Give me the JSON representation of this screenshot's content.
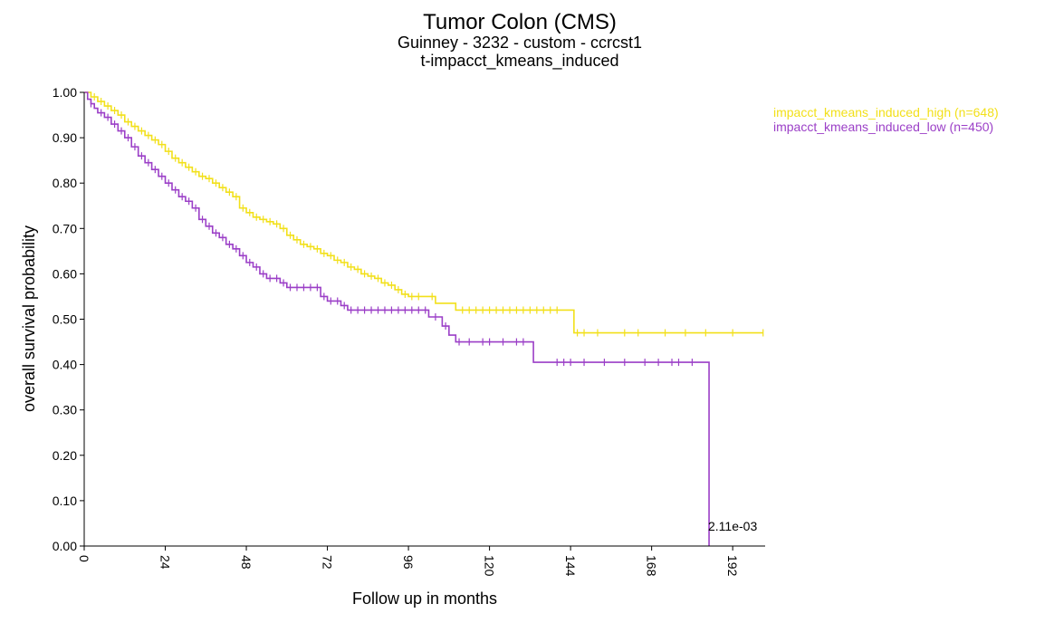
{
  "chart_data": {
    "type": "line",
    "title": "Tumor Colon (CMS)",
    "subtitle_1": "Guinney - 3232 - custom - ccrcst1",
    "subtitle_2": "t-impacct_kmeans_induced",
    "xlabel": "Follow up in months",
    "ylabel": "overall survival probability",
    "xlim": [
      0,
      197
    ],
    "ylim": [
      0,
      1
    ],
    "x_ticks": [
      "0",
      "24",
      "48",
      "72",
      "96",
      "120",
      "144",
      "168",
      "192"
    ],
    "y_ticks": [
      "0.00",
      "0.10",
      "0.20",
      "0.30",
      "0.40",
      "0.50",
      "0.60",
      "0.70",
      "0.80",
      "0.90",
      "1.00"
    ],
    "legend_position": "top-right",
    "p_value": "2.11e-03",
    "series": [
      {
        "name": "impacct_kmeans_induced_high (n=648)",
        "color": "#f2e01a",
        "points": [
          [
            0,
            1.0
          ],
          [
            2,
            0.99
          ],
          [
            4,
            0.98
          ],
          [
            6,
            0.97
          ],
          [
            8,
            0.96
          ],
          [
            10,
            0.95
          ],
          [
            12,
            0.935
          ],
          [
            14,
            0.925
          ],
          [
            16,
            0.915
          ],
          [
            18,
            0.905
          ],
          [
            20,
            0.895
          ],
          [
            22,
            0.885
          ],
          [
            24,
            0.87
          ],
          [
            26,
            0.855
          ],
          [
            28,
            0.845
          ],
          [
            30,
            0.835
          ],
          [
            32,
            0.825
          ],
          [
            34,
            0.815
          ],
          [
            36,
            0.81
          ],
          [
            38,
            0.8
          ],
          [
            40,
            0.79
          ],
          [
            42,
            0.78
          ],
          [
            44,
            0.77
          ],
          [
            46,
            0.745
          ],
          [
            48,
            0.735
          ],
          [
            50,
            0.725
          ],
          [
            52,
            0.72
          ],
          [
            54,
            0.715
          ],
          [
            56,
            0.71
          ],
          [
            58,
            0.7
          ],
          [
            60,
            0.685
          ],
          [
            62,
            0.675
          ],
          [
            64,
            0.665
          ],
          [
            66,
            0.66
          ],
          [
            68,
            0.655
          ],
          [
            70,
            0.645
          ],
          [
            72,
            0.64
          ],
          [
            74,
            0.63
          ],
          [
            76,
            0.625
          ],
          [
            78,
            0.615
          ],
          [
            80,
            0.61
          ],
          [
            82,
            0.6
          ],
          [
            84,
            0.595
          ],
          [
            86,
            0.59
          ],
          [
            88,
            0.58
          ],
          [
            90,
            0.575
          ],
          [
            92,
            0.565
          ],
          [
            94,
            0.555
          ],
          [
            96,
            0.55
          ],
          [
            100,
            0.55
          ],
          [
            104,
            0.535
          ],
          [
            110,
            0.52
          ],
          [
            144,
            0.52
          ],
          [
            145,
            0.47
          ],
          [
            201,
            0.47
          ]
        ],
        "censor_x": [
          3,
          5,
          7,
          9,
          11,
          13,
          15,
          17,
          19,
          21,
          23,
          25,
          27,
          29,
          31,
          33,
          35,
          37,
          39,
          41,
          43,
          45,
          47,
          49,
          51,
          53,
          55,
          57,
          59,
          61,
          63,
          65,
          67,
          69,
          71,
          73,
          75,
          77,
          79,
          81,
          83,
          85,
          87,
          89,
          91,
          93,
          95,
          97,
          99,
          103,
          112,
          114,
          116,
          118,
          120,
          122,
          124,
          126,
          128,
          130,
          132,
          134,
          136,
          138,
          140,
          146,
          148,
          152,
          160,
          164,
          172,
          178,
          184,
          192,
          201
        ]
      },
      {
        "name": "impacct_kmeans_induced_low (n=450)",
        "color": "#9b3fc7",
        "points": [
          [
            0,
            1.0
          ],
          [
            1,
            0.985
          ],
          [
            2,
            0.975
          ],
          [
            3,
            0.965
          ],
          [
            4,
            0.955
          ],
          [
            6,
            0.945
          ],
          [
            8,
            0.93
          ],
          [
            10,
            0.915
          ],
          [
            12,
            0.9
          ],
          [
            14,
            0.88
          ],
          [
            16,
            0.86
          ],
          [
            18,
            0.845
          ],
          [
            20,
            0.83
          ],
          [
            22,
            0.815
          ],
          [
            24,
            0.8
          ],
          [
            26,
            0.785
          ],
          [
            28,
            0.77
          ],
          [
            30,
            0.76
          ],
          [
            32,
            0.745
          ],
          [
            34,
            0.72
          ],
          [
            36,
            0.705
          ],
          [
            38,
            0.69
          ],
          [
            40,
            0.68
          ],
          [
            42,
            0.665
          ],
          [
            44,
            0.655
          ],
          [
            46,
            0.64
          ],
          [
            48,
            0.625
          ],
          [
            50,
            0.615
          ],
          [
            52,
            0.6
          ],
          [
            54,
            0.59
          ],
          [
            58,
            0.58
          ],
          [
            60,
            0.57
          ],
          [
            68,
            0.57
          ],
          [
            70,
            0.55
          ],
          [
            72,
            0.54
          ],
          [
            76,
            0.53
          ],
          [
            78,
            0.52
          ],
          [
            100,
            0.52
          ],
          [
            102,
            0.505
          ],
          [
            106,
            0.485
          ],
          [
            108,
            0.465
          ],
          [
            110,
            0.45
          ],
          [
            132,
            0.45
          ],
          [
            133,
            0.405
          ],
          [
            184,
            0.405
          ],
          [
            185,
            0.0
          ]
        ],
        "censor_x": [
          2,
          5,
          7,
          9,
          11,
          13,
          15,
          17,
          19,
          21,
          23,
          25,
          27,
          29,
          31,
          33,
          35,
          37,
          39,
          41,
          43,
          45,
          47,
          49,
          51,
          53,
          55,
          57,
          59,
          61,
          63,
          65,
          67,
          69,
          71,
          73,
          75,
          77,
          79,
          81,
          83,
          85,
          87,
          89,
          91,
          93,
          95,
          97,
          99,
          101,
          104,
          107,
          111,
          114,
          118,
          120,
          124,
          128,
          130,
          140,
          142,
          144,
          148,
          154,
          160,
          166,
          170,
          174,
          176,
          180
        ]
      }
    ]
  }
}
